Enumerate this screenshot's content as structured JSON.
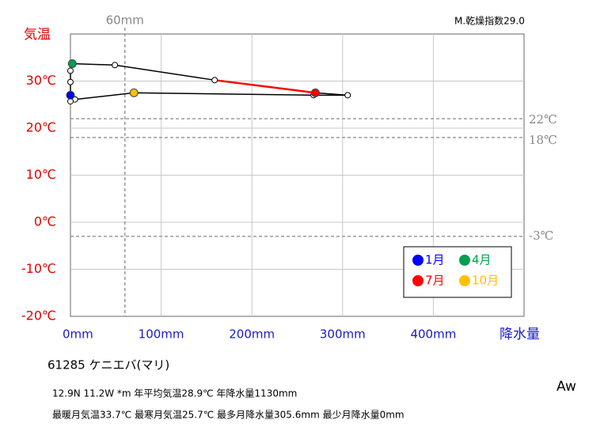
{
  "chart_data": {
    "type": "hythergraph",
    "title": "61285  ケニエバ(マリ)",
    "subtitle": "M.乾燥指数29.0",
    "info_lines": [
      "12.9N  11.2W *m  年平均気温28.9℃ 年降水量1130mm",
      "最暖月気温33.7℃ 最寒月気温25.7℃ 最多月降水量305.6mm 最少月降水量0mm"
    ],
    "climate_class": "Aw",
    "y_label": "気温",
    "x_label": "降水量",
    "series": [
      {
        "name": "気温・降水量",
        "color": "#000000",
        "x": [
          0,
          0,
          0,
          2,
          49,
          159,
          270,
          305.6,
          268,
          70,
          5,
          0
        ],
        "values": [
          27.0,
          29.8,
          32.2,
          33.7,
          33.4,
          30.2,
          27.5,
          27.0,
          27.0,
          27.5,
          26.1,
          25.7
        ]
      }
    ],
    "highlight_segment": {
      "from": 5,
      "to": 6,
      "color": "#ff0000"
    },
    "legend": [
      {
        "name": "1月",
        "color": "#0000ff",
        "index": 0
      },
      {
        "name": "4月",
        "color": "#00a050",
        "index": 3
      },
      {
        "name": "7月",
        "color": "#ff0000",
        "index": 6
      },
      {
        "name": "10月",
        "color": "#ffc000",
        "index": 9
      }
    ],
    "xlim": [
      0,
      500
    ],
    "ylim": [
      -20,
      40
    ],
    "xticks": [
      {
        "value": 0,
        "label": "0mm"
      },
      {
        "value": 100,
        "label": "100mm"
      },
      {
        "value": 200,
        "label": "200mm"
      },
      {
        "value": 300,
        "label": "300mm"
      },
      {
        "value": 400,
        "label": "400mm"
      }
    ],
    "yticks": [
      {
        "value": -20,
        "label": "-20℃"
      },
      {
        "value": -10,
        "label": "-10℃"
      },
      {
        "value": 0,
        "label": "0℃"
      },
      {
        "value": 10,
        "label": "10℃"
      },
      {
        "value": 20,
        "label": "20℃"
      },
      {
        "value": 30,
        "label": "30℃"
      }
    ],
    "y_reference_lines": [
      {
        "value": 22,
        "label": "22℃"
      },
      {
        "value": 18,
        "label": "18℃"
      },
      {
        "value": -3,
        "label": "-3℃"
      }
    ],
    "x_reference_lines": [
      {
        "value": 60,
        "label": "60mm"
      }
    ],
    "grid": true
  }
}
